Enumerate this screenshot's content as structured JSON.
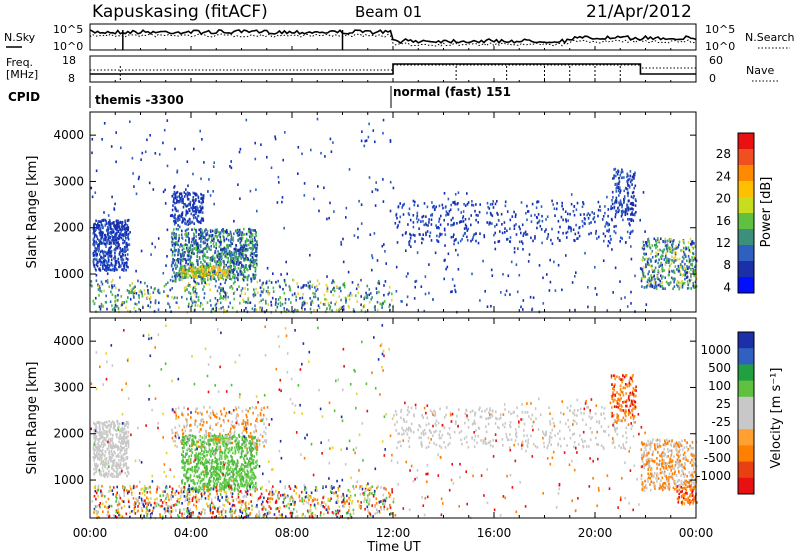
{
  "header": {
    "station": "Kapuskasing (fitACF)",
    "beam": "Beam 01",
    "date": "21/Apr/2012"
  },
  "top_panel": {
    "left_label": "N.Sky",
    "right_label": "N.Search",
    "left_ticks": [
      "10^5",
      "10^0"
    ],
    "right_ticks": [
      "10^5",
      "10^0"
    ]
  },
  "freq_panel": {
    "left_label_1": "Freq.",
    "left_label_2": "[MHz]",
    "right_label": "Nave",
    "left_ticks": [
      "18",
      "8"
    ],
    "right_ticks": [
      "60",
      "0"
    ]
  },
  "cpid": {
    "label": "CPID",
    "modes": [
      "themis -3300",
      "normal (fast) 151"
    ]
  },
  "colors": {
    "dark_blue": "#1a2fa8",
    "mid_blue": "#2f5fbf",
    "teal": "#3c8f7a",
    "green": "#4cc33a",
    "yellow": "#e6d23a",
    "orange": "#ff7f00",
    "red": "#e81010",
    "grey": "#c8c8c8"
  },
  "chart_data": [
    {
      "type": "heatmap",
      "title": "Power",
      "ylabel": "Slant Range [km]",
      "ylim": [
        180,
        4500
      ],
      "yticks": [
        "1000",
        "2000",
        "3000",
        "4000"
      ],
      "xlim": [
        "00:00",
        "24:00"
      ],
      "colorbar_label": "Power [dB]",
      "colorbar_ticks": [
        "4",
        "8",
        "12",
        "16",
        "20",
        "24",
        "28"
      ]
    },
    {
      "type": "heatmap",
      "title": "Velocity",
      "xlabel": "Time UT",
      "ylabel": "Slant Range [km]",
      "ylim": [
        180,
        4500
      ],
      "yticks": [
        "1000",
        "2000",
        "3000",
        "4000"
      ],
      "xticks": [
        "00:00",
        "04:00",
        "08:00",
        "12:00",
        "16:00",
        "20:00",
        "00:00"
      ],
      "colorbar_label": "Velocity [m s⁻¹]",
      "colorbar_ticks": [
        "1000",
        "500",
        "100",
        "25",
        "-25",
        "-100",
        "-500",
        "-1000"
      ]
    }
  ]
}
